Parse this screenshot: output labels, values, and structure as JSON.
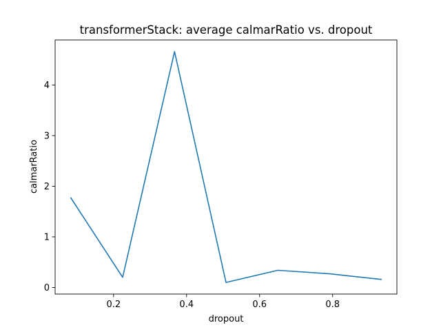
{
  "chart_data": {
    "type": "line",
    "title": "transformerStack: average calmarRatio vs. dropout",
    "xlabel": "dropout",
    "ylabel": "calmarRatio",
    "x": [
      0.083,
      0.225,
      0.367,
      0.508,
      0.65,
      0.792,
      0.933
    ],
    "series": [
      {
        "values": [
          1.77,
          0.2,
          4.66,
          0.1,
          0.34,
          0.27,
          0.16
        ],
        "color": "#1f77b4"
      }
    ],
    "xlim": [
      0.04,
      0.976
    ],
    "ylim": [
      -0.13,
      4.89
    ],
    "xticks": [
      0.2,
      0.4,
      0.6,
      0.8
    ],
    "xtick_labels": [
      "0.2",
      "0.4",
      "0.6",
      "0.8"
    ],
    "yticks": [
      0,
      1,
      2,
      3,
      4
    ],
    "ytick_labels": [
      "0",
      "1",
      "2",
      "3",
      "4"
    ],
    "grid": false,
    "legend": "none"
  }
}
